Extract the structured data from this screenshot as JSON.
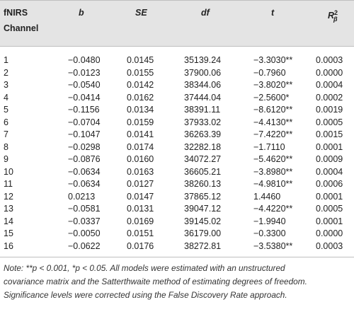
{
  "headers": {
    "channel_line1": "fNIRS",
    "channel_line2": "Channel",
    "b": "b",
    "se": "SE",
    "df": "df",
    "t": "t",
    "r_base": "R",
    "r_sup": "2",
    "r_sub": "β"
  },
  "rows": [
    {
      "ch": "1",
      "b": "−0.0480",
      "se": "0.0145",
      "df": "35139.24",
      "t": "−3.3030**",
      "r": "0.0003"
    },
    {
      "ch": "2",
      "b": "−0.0123",
      "se": "0.0155",
      "df": "37900.06",
      "t": "−0.7960",
      "r": "0.0000"
    },
    {
      "ch": "3",
      "b": "−0.0540",
      "se": "0.0142",
      "df": "38344.06",
      "t": "−3.8020**",
      "r": "0.0004"
    },
    {
      "ch": "4",
      "b": "−0.0414",
      "se": "0.0162",
      "df": "37444.04",
      "t": "−2.5600*",
      "r": "0.0002"
    },
    {
      "ch": "5",
      "b": "−0.1156",
      "se": "0.0134",
      "df": "38391.11",
      "t": "−8.6120**",
      "r": "0.0019"
    },
    {
      "ch": "6",
      "b": "−0.0704",
      "se": "0.0159",
      "df": "37933.02",
      "t": "−4.4130**",
      "r": "0.0005"
    },
    {
      "ch": "7",
      "b": "−0.1047",
      "se": "0.0141",
      "df": "36263.39",
      "t": "−7.4220**",
      "r": "0.0015"
    },
    {
      "ch": "8",
      "b": "−0.0298",
      "se": "0.0174",
      "df": "32282.18",
      "t": "−1.7110",
      "r": "0.0001"
    },
    {
      "ch": "9",
      "b": "−0.0876",
      "se": "0.0160",
      "df": "34072.27",
      "t": "−5.4620**",
      "r": "0.0009"
    },
    {
      "ch": "10",
      "b": "−0.0634",
      "se": "0.0163",
      "df": "36605.21",
      "t": "−3.8980**",
      "r": "0.0004"
    },
    {
      "ch": "11",
      "b": "−0.0634",
      "se": "0.0127",
      "df": "38260.13",
      "t": "−4.9810**",
      "r": "0.0006"
    },
    {
      "ch": "12",
      "b": "0.0213",
      "se": "0.0147",
      "df": "37865.12",
      "t": "1.4460",
      "r": "0.0001"
    },
    {
      "ch": "13",
      "b": "−0.0581",
      "se": "0.0131",
      "df": "39047.12",
      "t": "−4.4220**",
      "r": "0.0005"
    },
    {
      "ch": "14",
      "b": "−0.0337",
      "se": "0.0169",
      "df": "39145.02",
      "t": "−1.9940",
      "r": "0.0001"
    },
    {
      "ch": "15",
      "b": "−0.0050",
      "se": "0.0151",
      "df": "36179.00",
      "t": "−0.3300",
      "r": "0.0000"
    },
    {
      "ch": "16",
      "b": "−0.0622",
      "se": "0.0176",
      "df": "38272.81",
      "t": "−3.5380**",
      "r": "0.0003"
    }
  ],
  "note": {
    "line1": "Note: **p < 0.001, *p < 0.05. All models were estimated with an unstructured",
    "line2": "covariance matrix and the Satterthwaite method of estimating degrees of freedom.",
    "line3": "Significance levels were corrected using the False Discovery Rate approach."
  }
}
